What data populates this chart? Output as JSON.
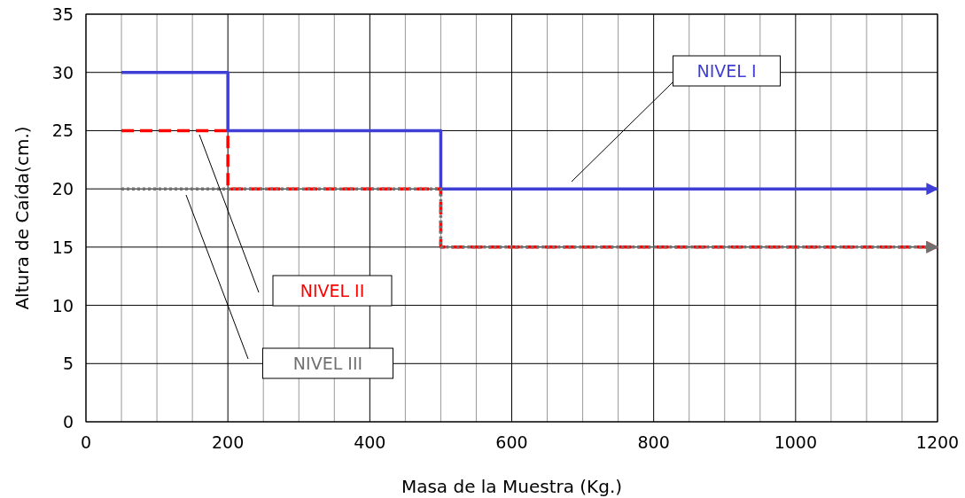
{
  "chart_data": {
    "type": "step",
    "xlabel": "Masa de la Muestra (Kg.)",
    "ylabel": "Altura de Caída(cm.)",
    "xlim": [
      0,
      1200
    ],
    "ylim": [
      0,
      35
    ],
    "xticks": [
      0,
      {
        "value": 50,
        "label": null
      },
      {
        "value": 100,
        "label": null
      },
      {
        "value": 150,
        "label": null
      },
      200,
      {
        "value": 250,
        "label": null
      },
      {
        "value": 300,
        "label": null
      },
      {
        "value": 350,
        "label": null
      },
      400,
      {
        "value": 450,
        "label": null
      },
      {
        "value": 500,
        "label": null
      },
      {
        "value": 550,
        "label": null
      },
      600,
      {
        "value": 650,
        "label": null
      },
      {
        "value": 700,
        "label": null
      },
      {
        "value": 750,
        "label": null
      },
      800,
      {
        "value": 850,
        "label": null
      },
      {
        "value": 900,
        "label": null
      },
      {
        "value": 950,
        "label": null
      },
      1000,
      {
        "value": 1050,
        "label": null
      },
      {
        "value": 1100,
        "label": null
      },
      {
        "value": 1150,
        "label": null
      },
      1200
    ],
    "yticks": [
      0,
      5,
      10,
      15,
      20,
      25,
      30,
      35
    ],
    "grid": true,
    "legend": false,
    "series": [
      {
        "name": "NIVEL I",
        "color": "#3f3fd6",
        "line_style": "solid",
        "x": [
          50,
          200,
          500,
          1200
        ],
        "values": [
          30,
          25,
          20,
          20
        ]
      },
      {
        "name": "NIVEL II",
        "color": "#ff0000",
        "line_style": "dashed",
        "x": [
          50,
          200,
          500,
          1200
        ],
        "values": [
          25,
          20,
          15,
          15
        ]
      },
      {
        "name": "NIVEL III",
        "color": "#707070",
        "line_style": "dotted",
        "x": [
          50,
          500,
          1200
        ],
        "values": [
          20,
          15,
          15
        ]
      }
    ]
  }
}
